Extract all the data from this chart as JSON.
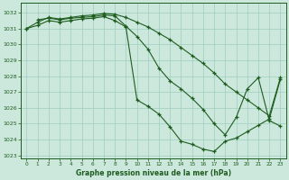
{
  "title": "Graphe pression niveau de la mer (hPa)",
  "bg_color": "#cce8dd",
  "line_color": "#1e5c1e",
  "grid_color": "#9ecfbe",
  "xlim": [
    -0.5,
    23.5
  ],
  "ylim": [
    1022.8,
    1032.6
  ],
  "yticks": [
    1023,
    1024,
    1025,
    1026,
    1027,
    1028,
    1029,
    1030,
    1031,
    1032
  ],
  "xticks": [
    0,
    1,
    2,
    3,
    4,
    5,
    6,
    7,
    8,
    9,
    10,
    11,
    12,
    13,
    14,
    15,
    16,
    17,
    18,
    19,
    20,
    21,
    22,
    23
  ],
  "series": [
    {
      "x": [
        0,
        1,
        2,
        3,
        4,
        5,
        6,
        7,
        8,
        9,
        10,
        11,
        12,
        13,
        14,
        15,
        16,
        17,
        18,
        19,
        20,
        21,
        22,
        23
      ],
      "y": [
        1031.0,
        1031.4,
        1031.7,
        1031.6,
        1031.7,
        1031.8,
        1031.85,
        1031.95,
        1031.9,
        1031.7,
        1031.4,
        1031.1,
        1030.7,
        1030.3,
        1029.8,
        1029.3,
        1028.8,
        1028.2,
        1027.5,
        1027.0,
        1026.5,
        1026.0,
        1025.5,
        1027.9
      ]
    },
    {
      "x": [
        0,
        1,
        2,
        3,
        4,
        5,
        6,
        7,
        8,
        9,
        10,
        11,
        12,
        13,
        14,
        15,
        16,
        17,
        18,
        19,
        20,
        21,
        22,
        23
      ],
      "y": [
        1031.0,
        1031.2,
        1031.5,
        1031.4,
        1031.5,
        1031.6,
        1031.65,
        1031.75,
        1031.5,
        1031.1,
        1026.5,
        1026.1,
        1025.6,
        1024.8,
        1023.9,
        1023.7,
        1023.4,
        1023.25,
        1023.9,
        1024.1,
        1024.5,
        1024.9,
        1025.3,
        1027.8
      ]
    },
    {
      "x": [
        1,
        2,
        3,
        4,
        5,
        6,
        7,
        8,
        9,
        10,
        11,
        12,
        13,
        14,
        15,
        16,
        17,
        18,
        19,
        20,
        21,
        22,
        23
      ],
      "y": [
        1031.55,
        1031.65,
        1031.55,
        1031.65,
        1031.7,
        1031.75,
        1031.85,
        1031.8,
        1031.15,
        1030.5,
        1029.7,
        1028.5,
        1027.7,
        1027.2,
        1026.6,
        1025.9,
        1025.0,
        1024.3,
        1025.4,
        1027.2,
        1027.9,
        1025.2,
        1024.85
      ]
    }
  ]
}
